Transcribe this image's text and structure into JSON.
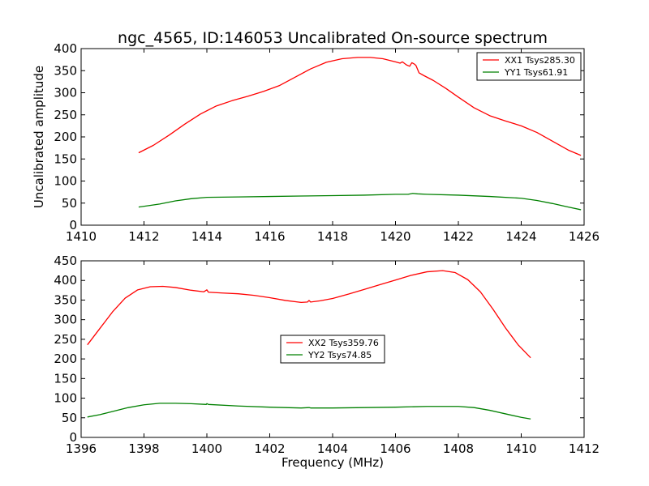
{
  "chart_data": [
    {
      "type": "line",
      "title": "ngc_4565, ID:146053 Uncalibrated On-source spectrum",
      "xlabel": "",
      "ylabel": "Uncalibrated amplitude",
      "xlim": [
        1410,
        1426
      ],
      "ylim": [
        0,
        400
      ],
      "xticks": [
        1410,
        1412,
        1414,
        1416,
        1418,
        1420,
        1422,
        1424,
        1426
      ],
      "yticks": [
        0,
        50,
        100,
        150,
        200,
        250,
        300,
        350,
        400
      ],
      "legend_position": "top-right",
      "series": [
        {
          "name": "XX1 Tsys285.30",
          "color": "#ff0000",
          "points": [
            [
              1411.83,
              164
            ],
            [
              1412.3,
              181
            ],
            [
              1412.8,
              204
            ],
            [
              1413.3,
              229
            ],
            [
              1413.8,
              252
            ],
            [
              1414.3,
              270
            ],
            [
              1414.8,
              282
            ],
            [
              1415.3,
              292
            ],
            [
              1415.8,
              303
            ],
            [
              1416.3,
              316
            ],
            [
              1416.8,
              335
            ],
            [
              1417.3,
              354
            ],
            [
              1417.8,
              369
            ],
            [
              1418.3,
              377
            ],
            [
              1418.8,
              380
            ],
            [
              1419.2,
              380
            ],
            [
              1419.6,
              377
            ],
            [
              1420.0,
              370
            ],
            [
              1420.15,
              367
            ],
            [
              1420.22,
              370
            ],
            [
              1420.35,
              363
            ],
            [
              1420.45,
              360
            ],
            [
              1420.52,
              368
            ],
            [
              1420.6,
              365
            ],
            [
              1420.65,
              362
            ],
            [
              1420.75,
              345
            ],
            [
              1420.9,
              339
            ],
            [
              1421.2,
              328
            ],
            [
              1421.6,
              310
            ],
            [
              1422.0,
              290
            ],
            [
              1422.5,
              266
            ],
            [
              1423.0,
              248
            ],
            [
              1423.5,
              236
            ],
            [
              1424.0,
              225
            ],
            [
              1424.5,
              210
            ],
            [
              1425.0,
              190
            ],
            [
              1425.5,
              170
            ],
            [
              1425.9,
              158
            ]
          ]
        },
        {
          "name": "YY1 Tsys61.91",
          "color": "#008000",
          "points": [
            [
              1411.83,
              41
            ],
            [
              1412.5,
              48
            ],
            [
              1413.0,
              55
            ],
            [
              1413.5,
              60
            ],
            [
              1414.0,
              63
            ],
            [
              1415.0,
              64
            ],
            [
              1416.0,
              65
            ],
            [
              1417.0,
              66
            ],
            [
              1418.0,
              67
            ],
            [
              1419.0,
              68
            ],
            [
              1420.0,
              70
            ],
            [
              1420.4,
              70
            ],
            [
              1420.55,
              72
            ],
            [
              1420.7,
              71
            ],
            [
              1421.0,
              70
            ],
            [
              1422.0,
              68
            ],
            [
              1423.0,
              65
            ],
            [
              1424.0,
              61
            ],
            [
              1424.5,
              56
            ],
            [
              1425.0,
              49
            ],
            [
              1425.5,
              41
            ],
            [
              1425.9,
              35
            ]
          ]
        }
      ]
    },
    {
      "type": "line",
      "title": "",
      "xlabel": "Frequency (MHz)",
      "ylabel": "",
      "xlim": [
        1396,
        1412
      ],
      "ylim": [
        0,
        450
      ],
      "xticks": [
        1396,
        1398,
        1400,
        1402,
        1404,
        1406,
        1408,
        1410,
        1412
      ],
      "yticks": [
        0,
        50,
        100,
        150,
        200,
        250,
        300,
        350,
        400,
        450
      ],
      "legend_position": "center",
      "series": [
        {
          "name": "XX2 Tsys359.76",
          "color": "#ff0000",
          "points": [
            [
              1396.2,
              236
            ],
            [
              1396.6,
              278
            ],
            [
              1397.0,
              320
            ],
            [
              1397.4,
              355
            ],
            [
              1397.8,
              376
            ],
            [
              1398.2,
              384
            ],
            [
              1398.6,
              385
            ],
            [
              1399.0,
              382
            ],
            [
              1399.5,
              375
            ],
            [
              1399.9,
              371
            ],
            [
              1400.0,
              376
            ],
            [
              1400.05,
              370
            ],
            [
              1400.5,
              368
            ],
            [
              1401.0,
              366
            ],
            [
              1401.5,
              362
            ],
            [
              1402.0,
              356
            ],
            [
              1402.5,
              349
            ],
            [
              1403.0,
              344
            ],
            [
              1403.2,
              345
            ],
            [
              1403.25,
              349
            ],
            [
              1403.3,
              345
            ],
            [
              1403.6,
              348
            ],
            [
              1404.0,
              354
            ],
            [
              1404.5,
              365
            ],
            [
              1405.0,
              377
            ],
            [
              1405.5,
              389
            ],
            [
              1406.0,
              401
            ],
            [
              1406.5,
              413
            ],
            [
              1407.0,
              422
            ],
            [
              1407.5,
              425
            ],
            [
              1407.9,
              420
            ],
            [
              1408.3,
              402
            ],
            [
              1408.7,
              371
            ],
            [
              1409.1,
              327
            ],
            [
              1409.5,
              279
            ],
            [
              1409.9,
              236
            ],
            [
              1410.3,
              203
            ]
          ]
        },
        {
          "name": "YY2 Tsys74.85",
          "color": "#008000",
          "points": [
            [
              1396.2,
              52
            ],
            [
              1396.6,
              58
            ],
            [
              1397.0,
              66
            ],
            [
              1397.5,
              76
            ],
            [
              1398.0,
              83
            ],
            [
              1398.5,
              87
            ],
            [
              1399.0,
              87
            ],
            [
              1399.5,
              86
            ],
            [
              1399.98,
              84
            ],
            [
              1400.0,
              86
            ],
            [
              1400.05,
              84
            ],
            [
              1401.0,
              80
            ],
            [
              1402.0,
              77
            ],
            [
              1403.0,
              75
            ],
            [
              1403.25,
              76
            ],
            [
              1403.3,
              75
            ],
            [
              1404.0,
              75
            ],
            [
              1405.0,
              76
            ],
            [
              1406.0,
              77
            ],
            [
              1407.0,
              79
            ],
            [
              1408.0,
              79
            ],
            [
              1408.5,
              76
            ],
            [
              1409.0,
              69
            ],
            [
              1409.5,
              60
            ],
            [
              1410.0,
              51
            ],
            [
              1410.3,
              47
            ]
          ]
        }
      ]
    }
  ]
}
